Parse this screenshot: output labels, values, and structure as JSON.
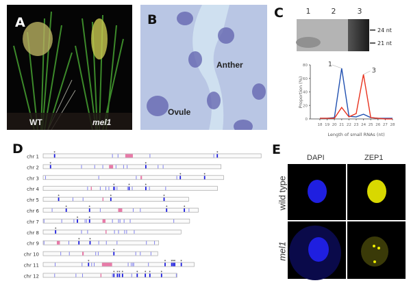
{
  "panel_a": {
    "label": "A",
    "wt_label": "WT",
    "mutant_label": "mel1"
  },
  "panel_b": {
    "label": "B",
    "anther_label": "Anther",
    "ovule_label": "Ovule"
  },
  "panel_c": {
    "label": "C",
    "lanes": [
      "1",
      "2",
      "3"
    ],
    "size_markers": [
      "24 nt",
      "21 nt"
    ]
  },
  "chart_data": {
    "type": "line",
    "title": "",
    "xlabel": "Length of small RNAs (nt)",
    "ylabel": "Proportion (%)",
    "x": [
      18,
      19,
      20,
      21,
      22,
      23,
      24,
      25,
      26,
      27,
      28
    ],
    "xlim": [
      18,
      28
    ],
    "ylim": [
      0,
      80
    ],
    "yticks": [
      0,
      20,
      40,
      60,
      80
    ],
    "series": [
      {
        "name": "1",
        "color": "#1f4fb0",
        "values": [
          1,
          1,
          2,
          75,
          4,
          3,
          7,
          2,
          1,
          1,
          1
        ]
      },
      {
        "name": "3",
        "color": "#e8311d",
        "values": [
          1,
          1,
          1,
          17,
          3,
          8,
          66,
          2,
          1,
          0,
          0
        ]
      }
    ]
  },
  "panel_d": {
    "label": "D",
    "chromosomes": [
      {
        "name": "chr 1",
        "length": 43,
        "centromere": [
          16.2,
          17.7
        ],
        "markers": [
          13.6,
          14.7,
          21,
          33.6
        ],
        "starred": [
          2.2,
          34.3
        ]
      },
      {
        "name": "chr 2",
        "length": 35.1,
        "centromere": [
          13,
          13.8
        ],
        "markers": [
          7.5,
          10.1,
          11.7,
          14.3,
          15.8,
          16.5,
          22.6,
          23.6
        ],
        "starred": [
          1.4,
          20.2
        ]
      },
      {
        "name": "chr 3",
        "length": 35.6,
        "centromere": [
          19.2,
          19.5
        ],
        "markers": [
          0.4,
          10.9,
          18.3,
          26.3
        ],
        "starred": [
          27,
          31.8
        ]
      },
      {
        "name": "chr 4",
        "length": 34.4,
        "centromere": [
          9.4,
          9.6
        ],
        "markers": [
          8.7,
          11.2,
          12.3,
          12.9,
          14.1,
          14.5,
          16.6,
          17.5,
          20.9,
          24.1
        ],
        "starred": [
          13.9,
          16.9,
          20.2
        ]
      },
      {
        "name": "chr 5",
        "length": 28.7,
        "centromere": [
          11.7,
          11.9
        ],
        "markers": [
          5.8,
          7.8
        ],
        "starred": [
          3,
          13.3,
          23.8
        ]
      },
      {
        "name": "chr 6",
        "length": 30.6,
        "centromere": [
          14.8,
          15.6
        ],
        "markers": [
          1.7,
          11.2,
          17.7,
          19.1,
          28.7
        ],
        "starred": [
          4.5,
          9.1,
          24.3,
          27.8
        ]
      },
      {
        "name": "chr 7",
        "length": 28.9,
        "centromere": [
          11.7,
          12.3
        ],
        "markers": [
          0.1,
          3.6,
          6,
          8.2,
          8.5,
          13.6,
          14.8,
          15.1,
          15.9,
          17.1,
          25.7
        ],
        "starred": [
          6.7,
          9.1
        ]
      },
      {
        "name": "chr 8",
        "length": 27.2,
        "centromere": [
          12.3,
          12.5
        ],
        "markers": [
          7.5,
          8.7,
          14,
          14.8,
          16,
          16.4,
          17.9
        ],
        "starred": [
          2.4
        ]
      },
      {
        "name": "chr 9",
        "length": 22.8,
        "centromere": [
          2.7,
          3.3
        ],
        "markers": [
          0.1,
          5,
          10.9,
          12.4,
          14.5,
          20.3,
          21.9
        ],
        "starred": [
          7,
          9.2
        ]
      },
      {
        "name": "chr 10",
        "length": 22.6,
        "centromere": [
          7.7,
          8
        ],
        "markers": [
          3.4,
          5.1,
          10.3,
          10.8,
          18.2,
          19.1,
          21.2
        ],
        "starred": [
          13.9
        ]
      },
      {
        "name": "chr 11",
        "length": 29.8,
        "centromere": [
          11.6,
          13.6
        ],
        "markers": [
          2.3,
          7.6,
          9.5,
          10,
          16.7,
          17.3,
          17.6,
          17.8,
          20.7
        ],
        "starred": [
          8.9,
          24,
          25.3,
          25.6,
          25.9,
          27.2
        ]
      },
      {
        "name": "chr 12",
        "length": 26.4,
        "centromere": [
          11.3,
          11.5
        ],
        "markers": [
          2.2,
          6.4,
          7.7,
          13.6,
          17.4,
          26.2
        ],
        "starred": [
          13.9,
          14.6,
          15,
          15.6,
          18.5,
          20.1,
          21,
          23.3
        ]
      }
    ]
  },
  "panel_e": {
    "label": "E",
    "columns": [
      "DAPI",
      "ZEP1"
    ],
    "rows": [
      "wild type",
      "mel1"
    ]
  }
}
